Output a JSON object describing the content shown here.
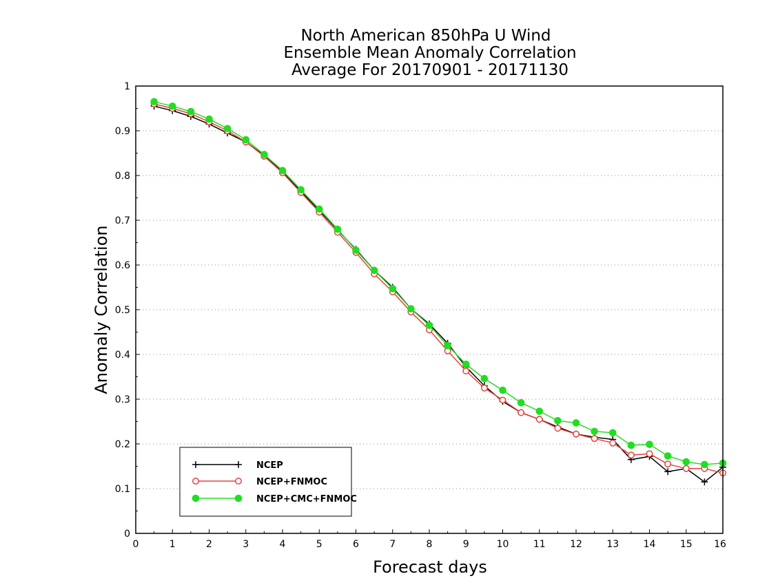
{
  "chart_data": {
    "type": "line",
    "title": [
      "North American 850hPa U Wind",
      "Ensemble Mean Anomaly Correlation",
      "Average For 20170901 - 20171130"
    ],
    "xlabel": "Forecast days",
    "ylabel": "Anomaly Correlation",
    "xlim": [
      0,
      16
    ],
    "ylim": [
      0,
      1
    ],
    "xticks": [
      "0",
      "1",
      "2",
      "3",
      "4",
      "5",
      "6",
      "7",
      "8",
      "9",
      "10",
      "11",
      "12",
      "13",
      "14",
      "15",
      "16"
    ],
    "yticks": [
      "0",
      "0.1",
      "0.2",
      "0.3",
      "0.4",
      "0.5",
      "0.6",
      "0.7",
      "0.8",
      "0.9",
      "1"
    ],
    "grid": "horizontal dotted",
    "legend_position": "bottom-left",
    "x": [
      0.5,
      1,
      1.5,
      2,
      2.5,
      3,
      3.5,
      4,
      4.5,
      5,
      5.5,
      6,
      6.5,
      7,
      7.5,
      8,
      8.5,
      9,
      9.5,
      10,
      10.5,
      11,
      11.5,
      12,
      12.5,
      13,
      13.5,
      14,
      14.5,
      15,
      15.5,
      16
    ],
    "series": [
      {
        "name": "NCEP",
        "color": "#000000",
        "marker": "plus",
        "values": [
          0.955,
          0.945,
          0.932,
          0.915,
          0.895,
          0.875,
          0.845,
          0.808,
          0.765,
          0.722,
          0.678,
          0.635,
          0.588,
          0.55,
          0.502,
          0.468,
          0.425,
          0.372,
          0.33,
          0.295,
          0.27,
          0.255,
          0.238,
          0.222,
          0.215,
          0.21,
          0.165,
          0.172,
          0.138,
          0.145,
          0.115,
          0.148
        ]
      },
      {
        "name": "NCEP+FNMOC",
        "color": "#e8403a",
        "marker": "open-circle",
        "values": [
          0.96,
          0.95,
          0.938,
          0.92,
          0.9,
          0.875,
          0.843,
          0.806,
          0.762,
          0.718,
          0.673,
          0.628,
          0.58,
          0.54,
          0.495,
          0.455,
          0.408,
          0.363,
          0.325,
          0.298,
          0.27,
          0.255,
          0.235,
          0.222,
          0.212,
          0.202,
          0.175,
          0.178,
          0.155,
          0.145,
          0.145,
          0.135
        ]
      },
      {
        "name": "NCEP+CMC+FNMOC",
        "color": "#22dd22",
        "marker": "filled-circle",
        "values": [
          0.965,
          0.955,
          0.943,
          0.926,
          0.905,
          0.88,
          0.847,
          0.811,
          0.768,
          0.725,
          0.68,
          0.633,
          0.588,
          0.547,
          0.502,
          0.465,
          0.42,
          0.378,
          0.346,
          0.32,
          0.292,
          0.273,
          0.252,
          0.247,
          0.228,
          0.225,
          0.197,
          0.199,
          0.173,
          0.16,
          0.154,
          0.157
        ]
      }
    ]
  }
}
